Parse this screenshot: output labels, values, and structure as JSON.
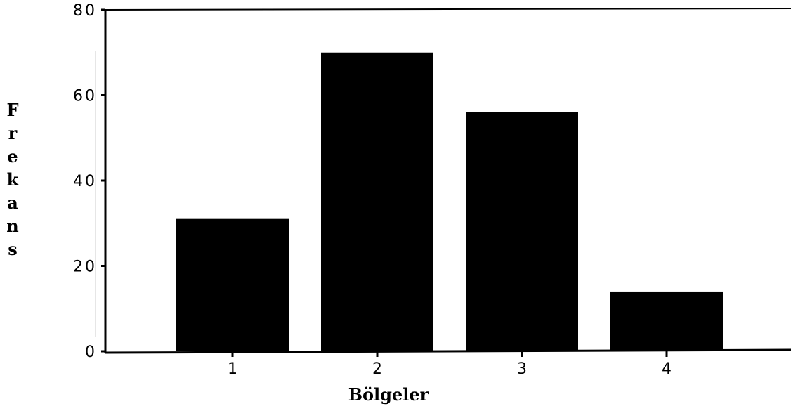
{
  "chart_data": {
    "type": "bar",
    "categories": [
      "1",
      "2",
      "3",
      "4"
    ],
    "values": [
      31,
      70,
      56,
      14
    ],
    "title": "",
    "xlabel": "Bölgeler",
    "ylabel": "Frekans",
    "ylim": [
      0,
      80
    ],
    "yticks": [
      "0",
      "20",
      "40",
      "60",
      "80"
    ],
    "bar_color": "#000000",
    "grid": false,
    "legend": "none"
  }
}
